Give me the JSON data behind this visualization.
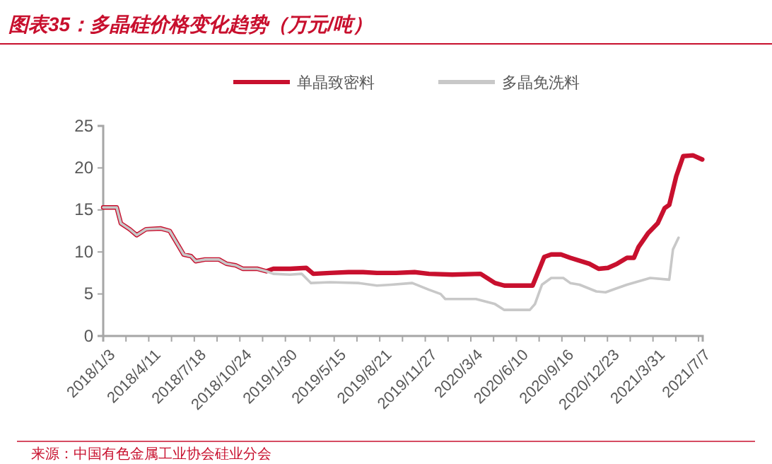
{
  "chart_data": {
    "type": "line",
    "title": "图表35：多晶硅价格变化趋势（万元/吨）",
    "legend": "top",
    "grid": false,
    "marker": "none",
    "line_style": "solid",
    "xlim": [
      "2018-01-03",
      "2021-07-16"
    ],
    "xticks": [
      {
        "value": "2018-01-03",
        "label": "2018/1/3"
      },
      {
        "value": "2018-02-21",
        "label": null
      },
      {
        "value": "2018-04-11",
        "label": "2018/4/11"
      },
      {
        "value": "2018-05-30",
        "label": null
      },
      {
        "value": "2018-07-18",
        "label": "2018/7/18"
      },
      {
        "value": "2018-09-05",
        "label": null
      },
      {
        "value": "2018-10-24",
        "label": "2018/10/24"
      },
      {
        "value": "2018-12-12",
        "label": null
      },
      {
        "value": "2019-01-30",
        "label": "2019/1/30"
      },
      {
        "value": "2019-03-24",
        "label": null
      },
      {
        "value": "2019-05-15",
        "label": "2019/5/15"
      },
      {
        "value": "2019-07-03",
        "label": null
      },
      {
        "value": "2019-08-21",
        "label": "2019/8/21"
      },
      {
        "value": "2019-10-09",
        "label": null
      },
      {
        "value": "2019-11-27",
        "label": "2019/11/27"
      },
      {
        "value": "2020-01-15",
        "label": null
      },
      {
        "value": "2020-03-04",
        "label": "2020/3/4"
      },
      {
        "value": "2020-04-22",
        "label": null
      },
      {
        "value": "2020-06-10",
        "label": "2020/6/10"
      },
      {
        "value": "2020-07-29",
        "label": null
      },
      {
        "value": "2020-09-16",
        "label": "2020/9/16"
      },
      {
        "value": "2020-11-04",
        "label": null
      },
      {
        "value": "2020-12-23",
        "label": "2020/12/23"
      },
      {
        "value": "2021-02-10",
        "label": null
      },
      {
        "value": "2021-03-31",
        "label": "2021/3/31"
      },
      {
        "value": "2021-05-19",
        "label": null
      },
      {
        "value": "2021-07-07",
        "label": "2021/7/7"
      }
    ],
    "ylim": [
      0,
      25
    ],
    "yticks": [
      0,
      5,
      10,
      15,
      20,
      25
    ],
    "annotations": [
      "来源：中国有色金属工业协会硅业分会"
    ],
    "series": [
      {
        "name": "单晶致密料",
        "color": "#c8102e",
        "x": [
          "2018-01-03",
          "2018-02-01",
          "2018-02-10",
          "2018-03-01",
          "2018-03-16",
          "2018-04-05",
          "2018-05-06",
          "2018-05-26",
          "2018-06-10",
          "2018-06-25",
          "2018-07-11",
          "2018-07-21",
          "2018-08-10",
          "2018-09-09",
          "2018-09-25",
          "2018-10-15",
          "2018-10-30",
          "2018-11-30",
          "2018-12-20",
          "2019-01-04",
          "2019-02-09",
          "2019-03-16",
          "2019-03-31",
          "2019-05-06",
          "2019-06-15",
          "2019-07-16",
          "2019-08-15",
          "2019-09-25",
          "2019-11-04",
          "2019-12-05",
          "2020-01-24",
          "2020-03-25",
          "2020-04-25",
          "2020-05-15",
          "2020-07-15",
          "2020-08-09",
          "2020-08-24",
          "2020-09-14",
          "2020-10-04",
          "2020-11-14",
          "2020-12-04",
          "2020-12-24",
          "2021-01-13",
          "2021-02-03",
          "2021-02-18",
          "2021-02-28",
          "2021-03-20",
          "2021-04-10",
          "2021-04-25",
          "2021-05-05",
          "2021-05-20",
          "2021-06-04",
          "2021-06-25",
          "2021-07-15"
        ],
        "values": [
          15.3,
          15.3,
          13.4,
          12.7,
          12.0,
          12.7,
          12.8,
          12.5,
          11.1,
          9.7,
          9.5,
          8.9,
          9.1,
          9.1,
          8.6,
          8.4,
          8.0,
          8.0,
          7.7,
          8.0,
          8.0,
          8.1,
          7.4,
          7.5,
          7.6,
          7.6,
          7.5,
          7.5,
          7.6,
          7.4,
          7.3,
          7.4,
          6.3,
          6.0,
          6.0,
          9.4,
          9.7,
          9.7,
          9.3,
          8.6,
          8.0,
          8.1,
          8.6,
          9.3,
          9.3,
          10.6,
          12.2,
          13.4,
          15.2,
          15.6,
          19.0,
          21.4,
          21.5,
          21.0
        ]
      },
      {
        "name": "多晶免洗料",
        "color": "#c8c8c8",
        "x": [
          "2018-01-03",
          "2018-02-01",
          "2018-02-10",
          "2018-03-01",
          "2018-03-16",
          "2018-04-05",
          "2018-05-06",
          "2018-05-26",
          "2018-06-10",
          "2018-06-25",
          "2018-07-11",
          "2018-07-21",
          "2018-08-10",
          "2018-09-09",
          "2018-09-25",
          "2018-10-15",
          "2018-10-30",
          "2018-11-30",
          "2018-12-20",
          "2019-01-04",
          "2019-02-09",
          "2019-03-06",
          "2019-03-26",
          "2019-05-06",
          "2019-07-06",
          "2019-08-15",
          "2019-09-15",
          "2019-10-30",
          "2019-12-05",
          "2019-12-30",
          "2020-01-09",
          "2020-03-15",
          "2020-04-25",
          "2020-05-15",
          "2020-07-09",
          "2020-07-20",
          "2020-08-04",
          "2020-08-24",
          "2020-09-19",
          "2020-10-04",
          "2020-10-24",
          "2020-11-29",
          "2020-12-19",
          "2021-01-08",
          "2021-02-03",
          "2021-02-28",
          "2021-03-25",
          "2021-05-05",
          "2021-05-13",
          "2021-05-25"
        ],
        "values": [
          15.3,
          15.3,
          13.4,
          12.7,
          12.0,
          12.7,
          12.8,
          12.5,
          11.1,
          9.7,
          9.5,
          8.9,
          9.1,
          9.1,
          8.6,
          8.4,
          8.0,
          8.0,
          7.7,
          7.4,
          7.3,
          7.4,
          6.3,
          6.4,
          6.3,
          6.0,
          6.1,
          6.3,
          5.5,
          5.0,
          4.4,
          4.4,
          3.8,
          3.1,
          3.1,
          3.8,
          6.1,
          6.9,
          6.9,
          6.3,
          6.1,
          5.3,
          5.2,
          5.6,
          6.1,
          6.5,
          6.9,
          6.7,
          10.3,
          11.7
        ]
      }
    ]
  }
}
